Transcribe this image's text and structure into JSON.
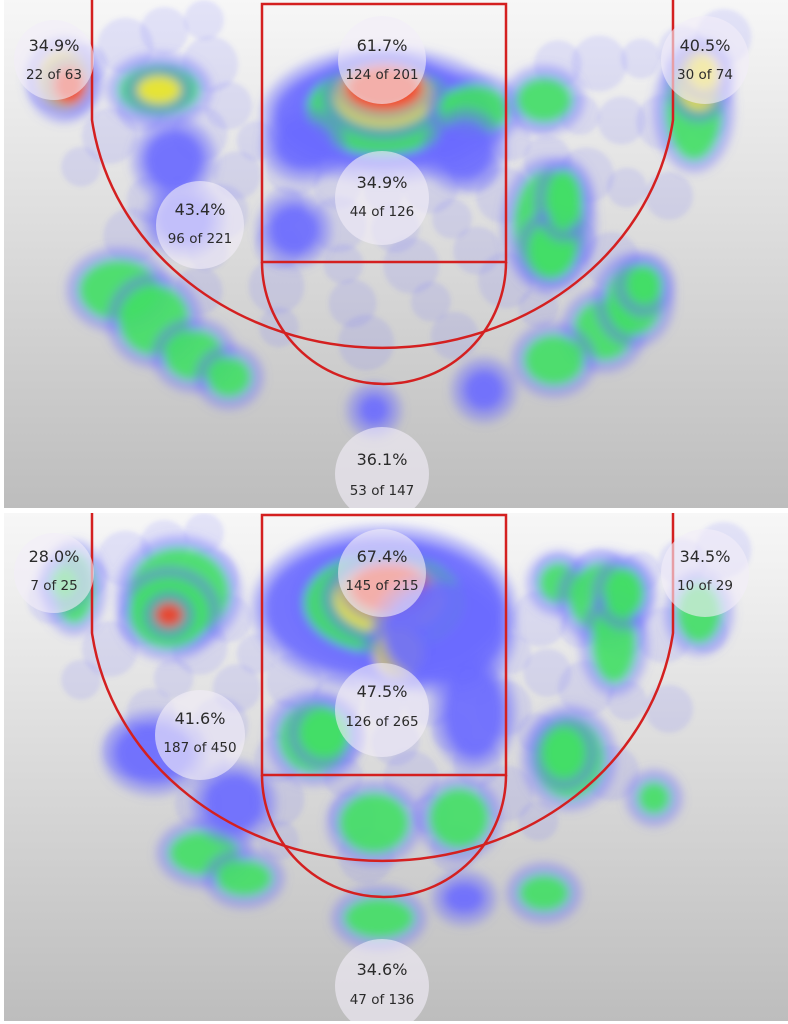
{
  "chart_data": [
    {
      "type": "heatmap",
      "title": "",
      "zones": [
        {
          "id": "left-corner-three",
          "pct": "34.9%",
          "made_of_attempts": "22 of 63",
          "made": 22,
          "attempts": 63
        },
        {
          "id": "restricted-area",
          "pct": "61.7%",
          "made_of_attempts": "124 of 201",
          "made": 124,
          "attempts": 201
        },
        {
          "id": "right-corner-three",
          "pct": "40.5%",
          "made_of_attempts": "30 of 74",
          "made": 30,
          "attempts": 74
        },
        {
          "id": "mid-range",
          "pct": "43.4%",
          "made_of_attempts": "96 of 221",
          "made": 96,
          "attempts": 221
        },
        {
          "id": "paint-non-ra",
          "pct": "34.9%",
          "made_of_attempts": "44 of 126",
          "made": 44,
          "attempts": 126
        },
        {
          "id": "above-break-three",
          "pct": "36.1%",
          "made_of_attempts": "53 of 147",
          "made": 53,
          "attempts": 147
        }
      ]
    },
    {
      "type": "heatmap",
      "title": "",
      "zones": [
        {
          "id": "left-corner-three",
          "pct": "28.0%",
          "made_of_attempts": "7 of 25",
          "made": 7,
          "attempts": 25
        },
        {
          "id": "restricted-area",
          "pct": "67.4%",
          "made_of_attempts": "145 of 215",
          "made": 145,
          "attempts": 215
        },
        {
          "id": "right-corner-three",
          "pct": "34.5%",
          "made_of_attempts": "10 of 29",
          "made": 10,
          "attempts": 29
        },
        {
          "id": "mid-range",
          "pct": "41.6%",
          "made_of_attempts": "187 of 450",
          "made": 187,
          "attempts": 450
        },
        {
          "id": "paint-non-ra",
          "pct": "47.5%",
          "made_of_attempts": "126 of 265",
          "made": 126,
          "attempts": 265
        },
        {
          "id": "above-break-three",
          "pct": "34.6%",
          "made_of_attempts": "47 of 136",
          "made": 47,
          "attempts": 136
        }
      ]
    }
  ],
  "colors": {
    "court_lines": "#d42020",
    "heat_low": "#6b6bff",
    "heat_mid": "#3ee85a",
    "heat_high": "#ffee22",
    "heat_max": "#ff3a1a",
    "label_bubble": "#f2eef8",
    "label_text": "#2b2b2b"
  }
}
